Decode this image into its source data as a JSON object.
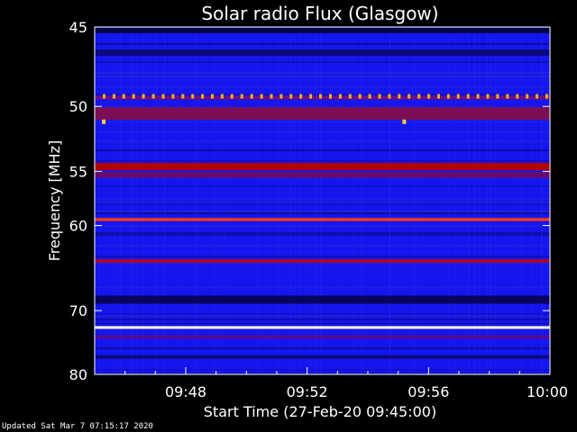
{
  "chart_data": {
    "type": "heatmap",
    "title": "Solar radio Flux (Glasgow)",
    "xlabel": "Start Time (27-Feb-20 09:45:00)",
    "ylabel": "Frequency [MHz]",
    "x_tick_labels": [
      "09:48",
      "09:52",
      "09:56",
      "10:00"
    ],
    "x_ticks_minutes": [
      3,
      7,
      11,
      15
    ],
    "xlim_minutes": [
      0,
      15
    ],
    "y_ticks": [
      45,
      50,
      55,
      60,
      70,
      80
    ],
    "ylim": [
      45,
      80
    ],
    "y_scale": "reciprocal",
    "background_colors": {
      "base": "#1515ee",
      "dark": "#07076a",
      "mid": "#2828d8"
    },
    "bands": [
      {
        "freq": 45.2,
        "color": "#050540",
        "width_mhz": 0.3
      },
      {
        "freq": 46.5,
        "color": "#0a0a80",
        "width_mhz": 0.4
      },
      {
        "freq": 49.4,
        "color": "#6a1180",
        "width_mhz": 0.25
      },
      {
        "freq": 50.5,
        "color": "#7a0f55",
        "width_mhz": 0.9
      },
      {
        "freq": 54.6,
        "color": "#b30000",
        "width_mhz": 0.6
      },
      {
        "freq": 55.3,
        "color": "#6a0a6a",
        "width_mhz": 0.5
      },
      {
        "freq": 59.4,
        "color": "#ff3b1a",
        "width_mhz": 0.3
      },
      {
        "freq": 63.8,
        "color": "#c40010",
        "width_mhz": 0.35
      },
      {
        "freq": 68.5,
        "color": "#06065e",
        "width_mhz": 1.0
      },
      {
        "freq": 72.4,
        "color": "#ffffc8",
        "width_mhz": 0.4
      },
      {
        "freq": 73.8,
        "color": "#5a0a8a",
        "width_mhz": 0.5
      },
      {
        "freq": 77.0,
        "color": "#0a0a7a",
        "width_mhz": 0.6
      }
    ],
    "dot_row": {
      "freq": 49.3,
      "color": "#ffaa22",
      "count": 46
    },
    "spot_events": [
      {
        "minute": 0.3,
        "freq": 51.1,
        "color": "#ffcc33"
      },
      {
        "minute": 10.2,
        "freq": 51.1,
        "color": "#ffcc33"
      }
    ]
  },
  "footer": {
    "updated": "Updated Sat Mar  7 07:15:17 2020"
  }
}
